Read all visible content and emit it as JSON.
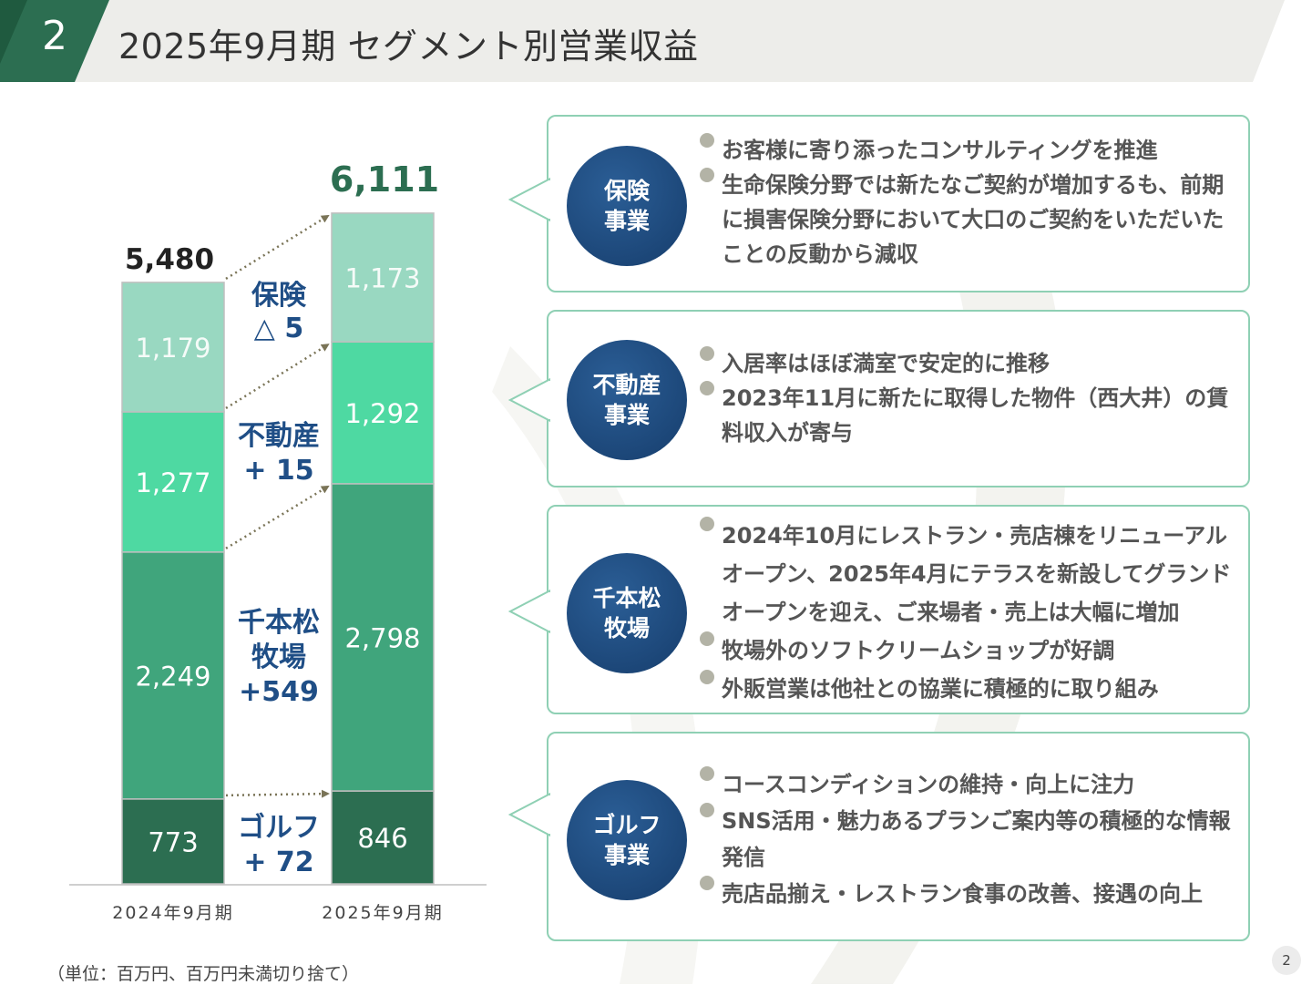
{
  "header": {
    "slide_number": "2",
    "title": "2025年9月期 セグメント別営業収益"
  },
  "chart_data": {
    "type": "bar",
    "stacked": true,
    "categories": [
      "2024年9月期",
      "2025年9月期"
    ],
    "totals": [
      "5,480",
      "6,111"
    ],
    "series": [
      {
        "key": "golf",
        "values": [
          773,
          846
        ],
        "value_labels": [
          "773",
          "846"
        ],
        "color": "#2c6e51"
      },
      {
        "key": "ranch",
        "values": [
          2249,
          2798
        ],
        "value_labels": [
          "2,249",
          "2,798"
        ],
        "color": "#40a57c"
      },
      {
        "key": "estate",
        "values": [
          1277,
          1292
        ],
        "value_labels": [
          "1,277",
          "1,292"
        ],
        "color": "#4ed9a2"
      },
      {
        "key": "ins",
        "values": [
          1179,
          1173
        ],
        "value_labels": [
          "1,179",
          "1,173"
        ],
        "color": "#99d8c1"
      }
    ],
    "change_labels": [
      {
        "lines": [
          "保険",
          "△ 5"
        ]
      },
      {
        "lines": [
          "不動産",
          "+ 15"
        ]
      },
      {
        "lines": [
          "千本松",
          "牧場",
          "+549"
        ]
      },
      {
        "lines": [
          "ゴルフ",
          "+ 72"
        ]
      }
    ],
    "unit_note": "（単位：百万円、百万円未満切り捨て）"
  },
  "panels": [
    {
      "label": "保険\n事業",
      "bullets": [
        "お客様に寄り添ったコンサルティングを推進",
        "生命保険分野では新たなご契約が増加するも、前期に損害保険分野において大口のご契約をいただいたことの反動から減収"
      ]
    },
    {
      "label": "不動産\n事業",
      "bullets": [
        "入居率はほぼ満室で安定的に推移",
        "2023年11月に新たに取得した物件（西大井）の賃料収入が寄与"
      ]
    },
    {
      "label": "千本松\n牧場",
      "bullets": [
        "2024年10月にレストラン・売店棟をリニューアルオープン、2025年4月にテラスを新設してグランドオープンを迎え、ご来場者・売上は大幅に増加",
        "牧場外のソフトクリームショップが好調",
        "外販営業は他社との協業に積極的に取り組み"
      ]
    },
    {
      "label": "ゴルフ\n事業",
      "bullets": [
        "コースコンディションの維持・向上に注力",
        "SNS活用・魅力あるプランご案内等の積極的な情報発信",
        "売店品揃え・レストラン食事の改善、接遇の向上"
      ]
    }
  ],
  "footer": {
    "page_number": "2"
  },
  "colors": {
    "accent_green": "#2c6e51",
    "header_bg": "#ededea",
    "panel_border": "#8fd0b4",
    "circle_blue": "#1d4a7e",
    "change_label": "#1f4e86",
    "total_new": "#2c6e51"
  }
}
